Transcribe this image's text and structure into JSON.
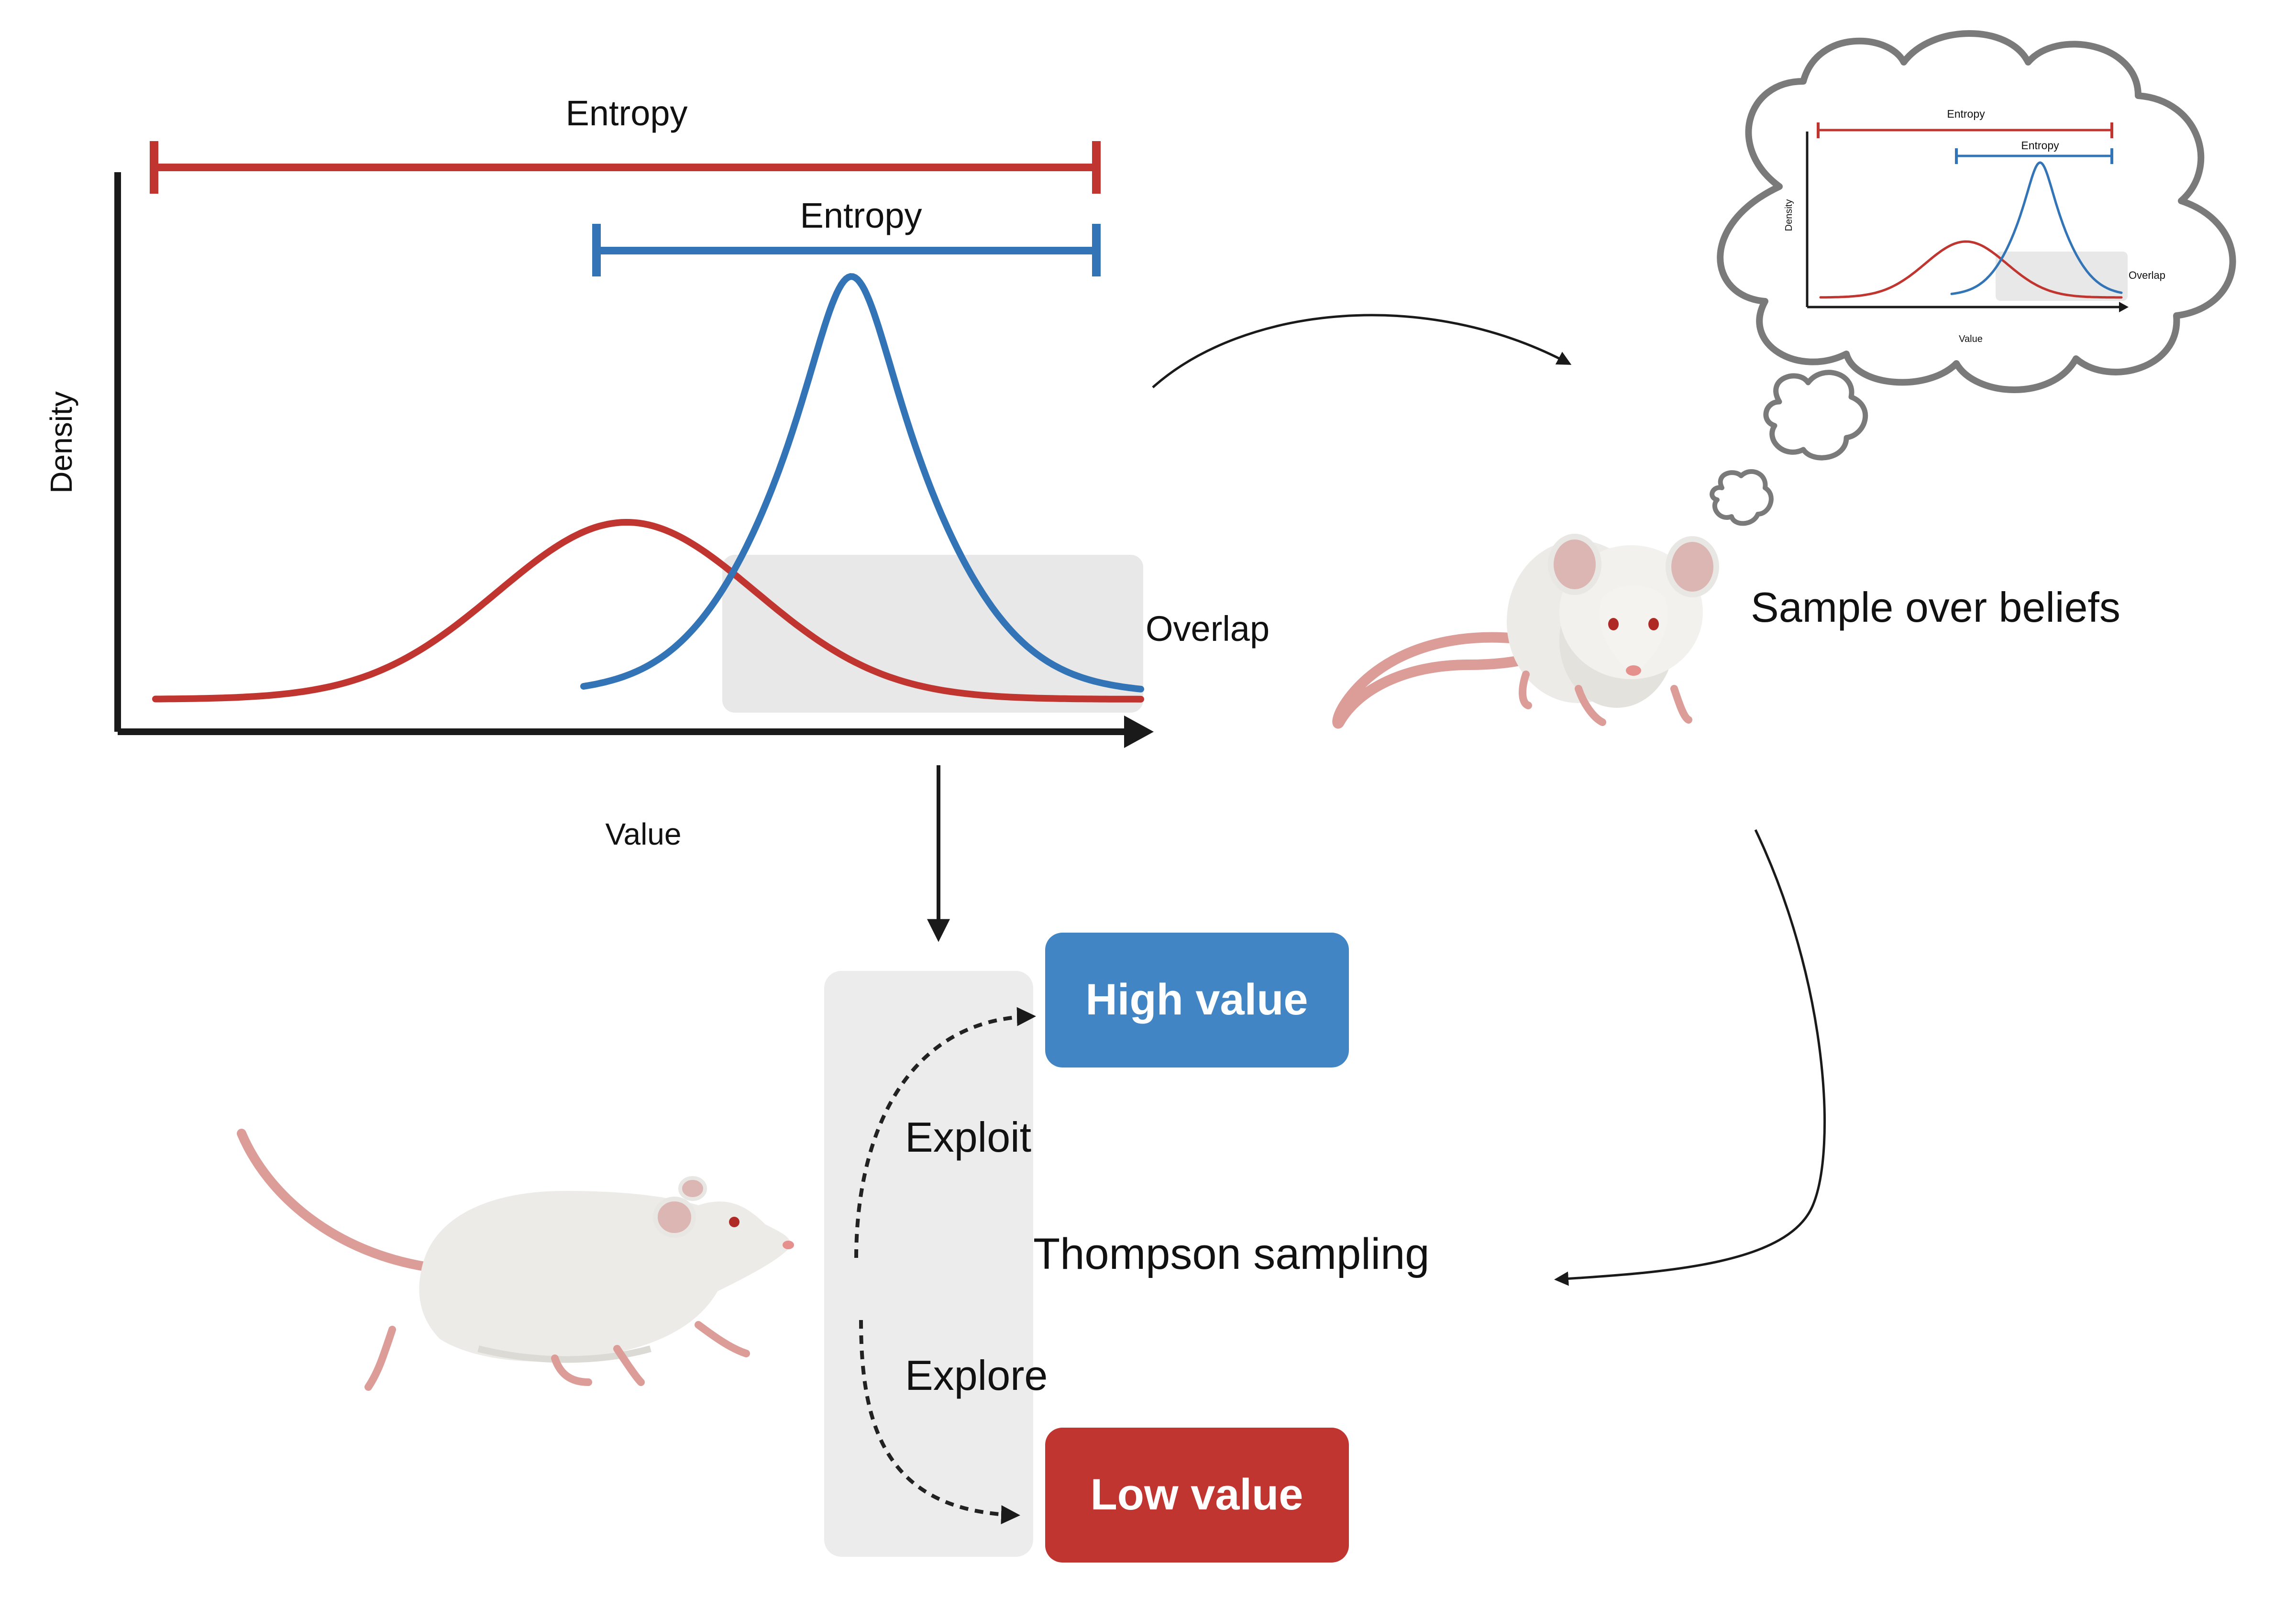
{
  "main_plot": {
    "ylabel": "Density",
    "xlabel": "Value",
    "entropy_wide_label": "Entropy",
    "entropy_narrow_label": "Entropy",
    "overlap_label": "Overlap"
  },
  "thought_plot": {
    "ylabel": "Density",
    "xlabel": "Value",
    "entropy_wide_label": "Entropy",
    "entropy_narrow_label": "Entropy",
    "overlap_label": "Overlap"
  },
  "labels": {
    "sample_over_beliefs": "Sample over beliefs",
    "thompson_sampling": "Thompson sampling",
    "exploit": "Exploit",
    "explore": "Explore",
    "high_value": "High value",
    "low_value": "Low value"
  },
  "colors": {
    "red": "#c0352f",
    "blue": "#3274b5",
    "high_value_box": "#4285c4",
    "low_value_box": "#c0352f",
    "overlap_fill": "#e8e8e8",
    "panel_fill": "#ececec",
    "axis": "#1a1a1a",
    "mouse_body": "#ecebe7",
    "mouse_pink": "#dc9c97"
  },
  "icons": {
    "mouse": "sitting-mouse-icon",
    "rat": "walking-rat-icon",
    "thought": "thought-cloud-icon"
  }
}
